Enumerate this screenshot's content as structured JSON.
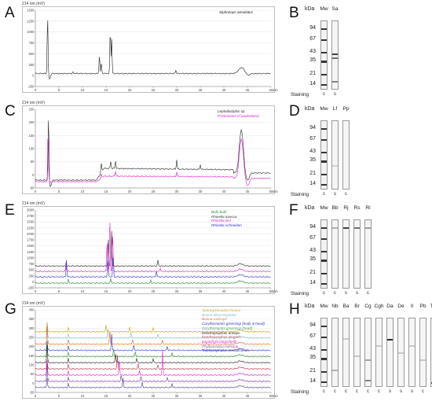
{
  "panels": {
    "A": {
      "letter": "A",
      "ylabel": "214 nm (mV)",
      "xunit": "min",
      "yticks": [
        "1500",
        "1250",
        "1000",
        "750",
        "500",
        "250",
        "0",
        "-250"
      ],
      "xticks": [
        "0",
        "5",
        "10",
        "15",
        "20",
        "25",
        "30",
        "35",
        "40",
        "45",
        "50"
      ],
      "legend": [
        {
          "name": "Siphonops annulatus",
          "color": "#222222"
        }
      ]
    },
    "C": {
      "letter": "C",
      "ylabel": "214 nm (mV)",
      "xunit": "min",
      "yticks": [
        "250",
        "200",
        "150",
        "100",
        "50",
        "0",
        "-50"
      ],
      "xticks": [
        "0",
        "5",
        "10",
        "15",
        "20",
        "25",
        "30",
        "35",
        "40",
        "45",
        "50"
      ],
      "legend": [
        {
          "name": "Leptodactylus sp",
          "color": "#222222"
        },
        {
          "name": "Pristimantis cf paulodutrai",
          "color": "#e020d0"
        }
      ]
    },
    "E": {
      "letter": "E",
      "ylabel": "214 nm (mV)",
      "xunit": "min",
      "yticks": [
        "3000",
        "2750",
        "2500",
        "2250",
        "2000",
        "1750",
        "1500",
        "1250",
        "1000",
        "750",
        "500",
        "250",
        "0",
        "-250"
      ],
      "xticks": [
        "0",
        "5",
        "10",
        "15",
        "20",
        "25",
        "30",
        "35",
        "40",
        "45",
        "50"
      ],
      "legend": [
        {
          "name": "Bufo bufo",
          "color": "#2a8a2a"
        },
        {
          "name": "Rhinella icterica",
          "color": "#222222"
        },
        {
          "name": "Rhinella jimi",
          "color": "#e020d0"
        },
        {
          "name": "Rhinella schneideri",
          "color": "#3030c0"
        }
      ]
    },
    "G": {
      "letter": "G",
      "ylabel": "214 nm (mV)",
      "xunit": "min",
      "yticks": [
        "400",
        "350",
        "300",
        "250",
        "200",
        "150",
        "100",
        "50",
        "0",
        "-50"
      ],
      "xticks": [
        "0",
        "5",
        "10",
        "15",
        "20",
        "25",
        "30",
        "35",
        "40",
        "45",
        "50"
      ],
      "legend": [
        {
          "name": "Aparasphenodon brunoi",
          "color": "#c8a000"
        },
        {
          "name": "Boana albomarginata",
          "color": "#80c0c0"
        },
        {
          "name": "Boana raniceps",
          "color": "#e06020"
        },
        {
          "name": "Corythomantis greeningi (body & head)",
          "color": "#3030c0"
        },
        {
          "name": "Corythomantis greeningi (head)",
          "color": "#2a8a2a"
        },
        {
          "name": "Dendropsophus anceps",
          "color": "#222222"
        },
        {
          "name": "Dendropsophus elegans",
          "color": "#c02040"
        },
        {
          "name": "Itapotihyla langsdorffii",
          "color": "#e020d0"
        },
        {
          "name": "Phyllomedusa bahiana",
          "color": "#7030a0"
        },
        {
          "name": "Trachycephalus mesophaeus",
          "color": "#444488"
        }
      ]
    }
  },
  "gels": {
    "B": {
      "letter": "B",
      "kda_label": "kDa",
      "staining_label": "Staining",
      "markers": [
        "94",
        "67",
        "43",
        "35",
        "21",
        "14"
      ],
      "lanes": [
        {
          "label": "Mw",
          "stain": "c"
        },
        {
          "label": "Sa",
          "stain": "s"
        }
      ]
    },
    "D": {
      "letter": "D",
      "kda_label": "kDa",
      "staining_label": "Staining",
      "markers": [
        "94",
        "67",
        "43",
        "35",
        "21",
        "14"
      ],
      "lanes": [
        {
          "label": "Mw",
          "stain": "c"
        },
        {
          "label": "Lf",
          "stain": "s"
        },
        {
          "label": "Pp",
          "stain": "c"
        }
      ]
    },
    "F": {
      "letter": "F",
      "kda_label": "kDa",
      "staining_label": "Staining",
      "markers": [
        "94",
        "67",
        "43",
        "35",
        "21",
        "14"
      ],
      "lanes": [
        {
          "label": "Mw",
          "stain": "c"
        },
        {
          "label": "Bb",
          "stain": "c"
        },
        {
          "label": "Rj",
          "stain": "s"
        },
        {
          "label": "Rs",
          "stain": "s"
        },
        {
          "label": "Ri",
          "stain": "c"
        }
      ]
    },
    "H": {
      "letter": "H",
      "kda_label": "kDa",
      "staining_label": "Staining",
      "markers": [
        "94",
        "67",
        "43",
        "35",
        "21",
        "14"
      ],
      "lanes": [
        {
          "label": "Mw",
          "stain": "c"
        },
        {
          "label": "Nb",
          "stain": "c"
        },
        {
          "label": "Ba",
          "stain": "c"
        },
        {
          "label": "Br",
          "stain": "c"
        },
        {
          "label": "Cg",
          "stain": "c"
        },
        {
          "label": "Cgh",
          "stain": "c"
        },
        {
          "label": "Da",
          "stain": "s"
        },
        {
          "label": "De",
          "stain": "s"
        },
        {
          "label": "Il",
          "stain": "s"
        },
        {
          "label": "Pb",
          "stain": "c"
        },
        {
          "label": "Tm",
          "stain": "c"
        }
      ]
    }
  },
  "colors": {
    "frame": "#bdbdbd",
    "axis": "#666666",
    "ink": "#222222"
  }
}
